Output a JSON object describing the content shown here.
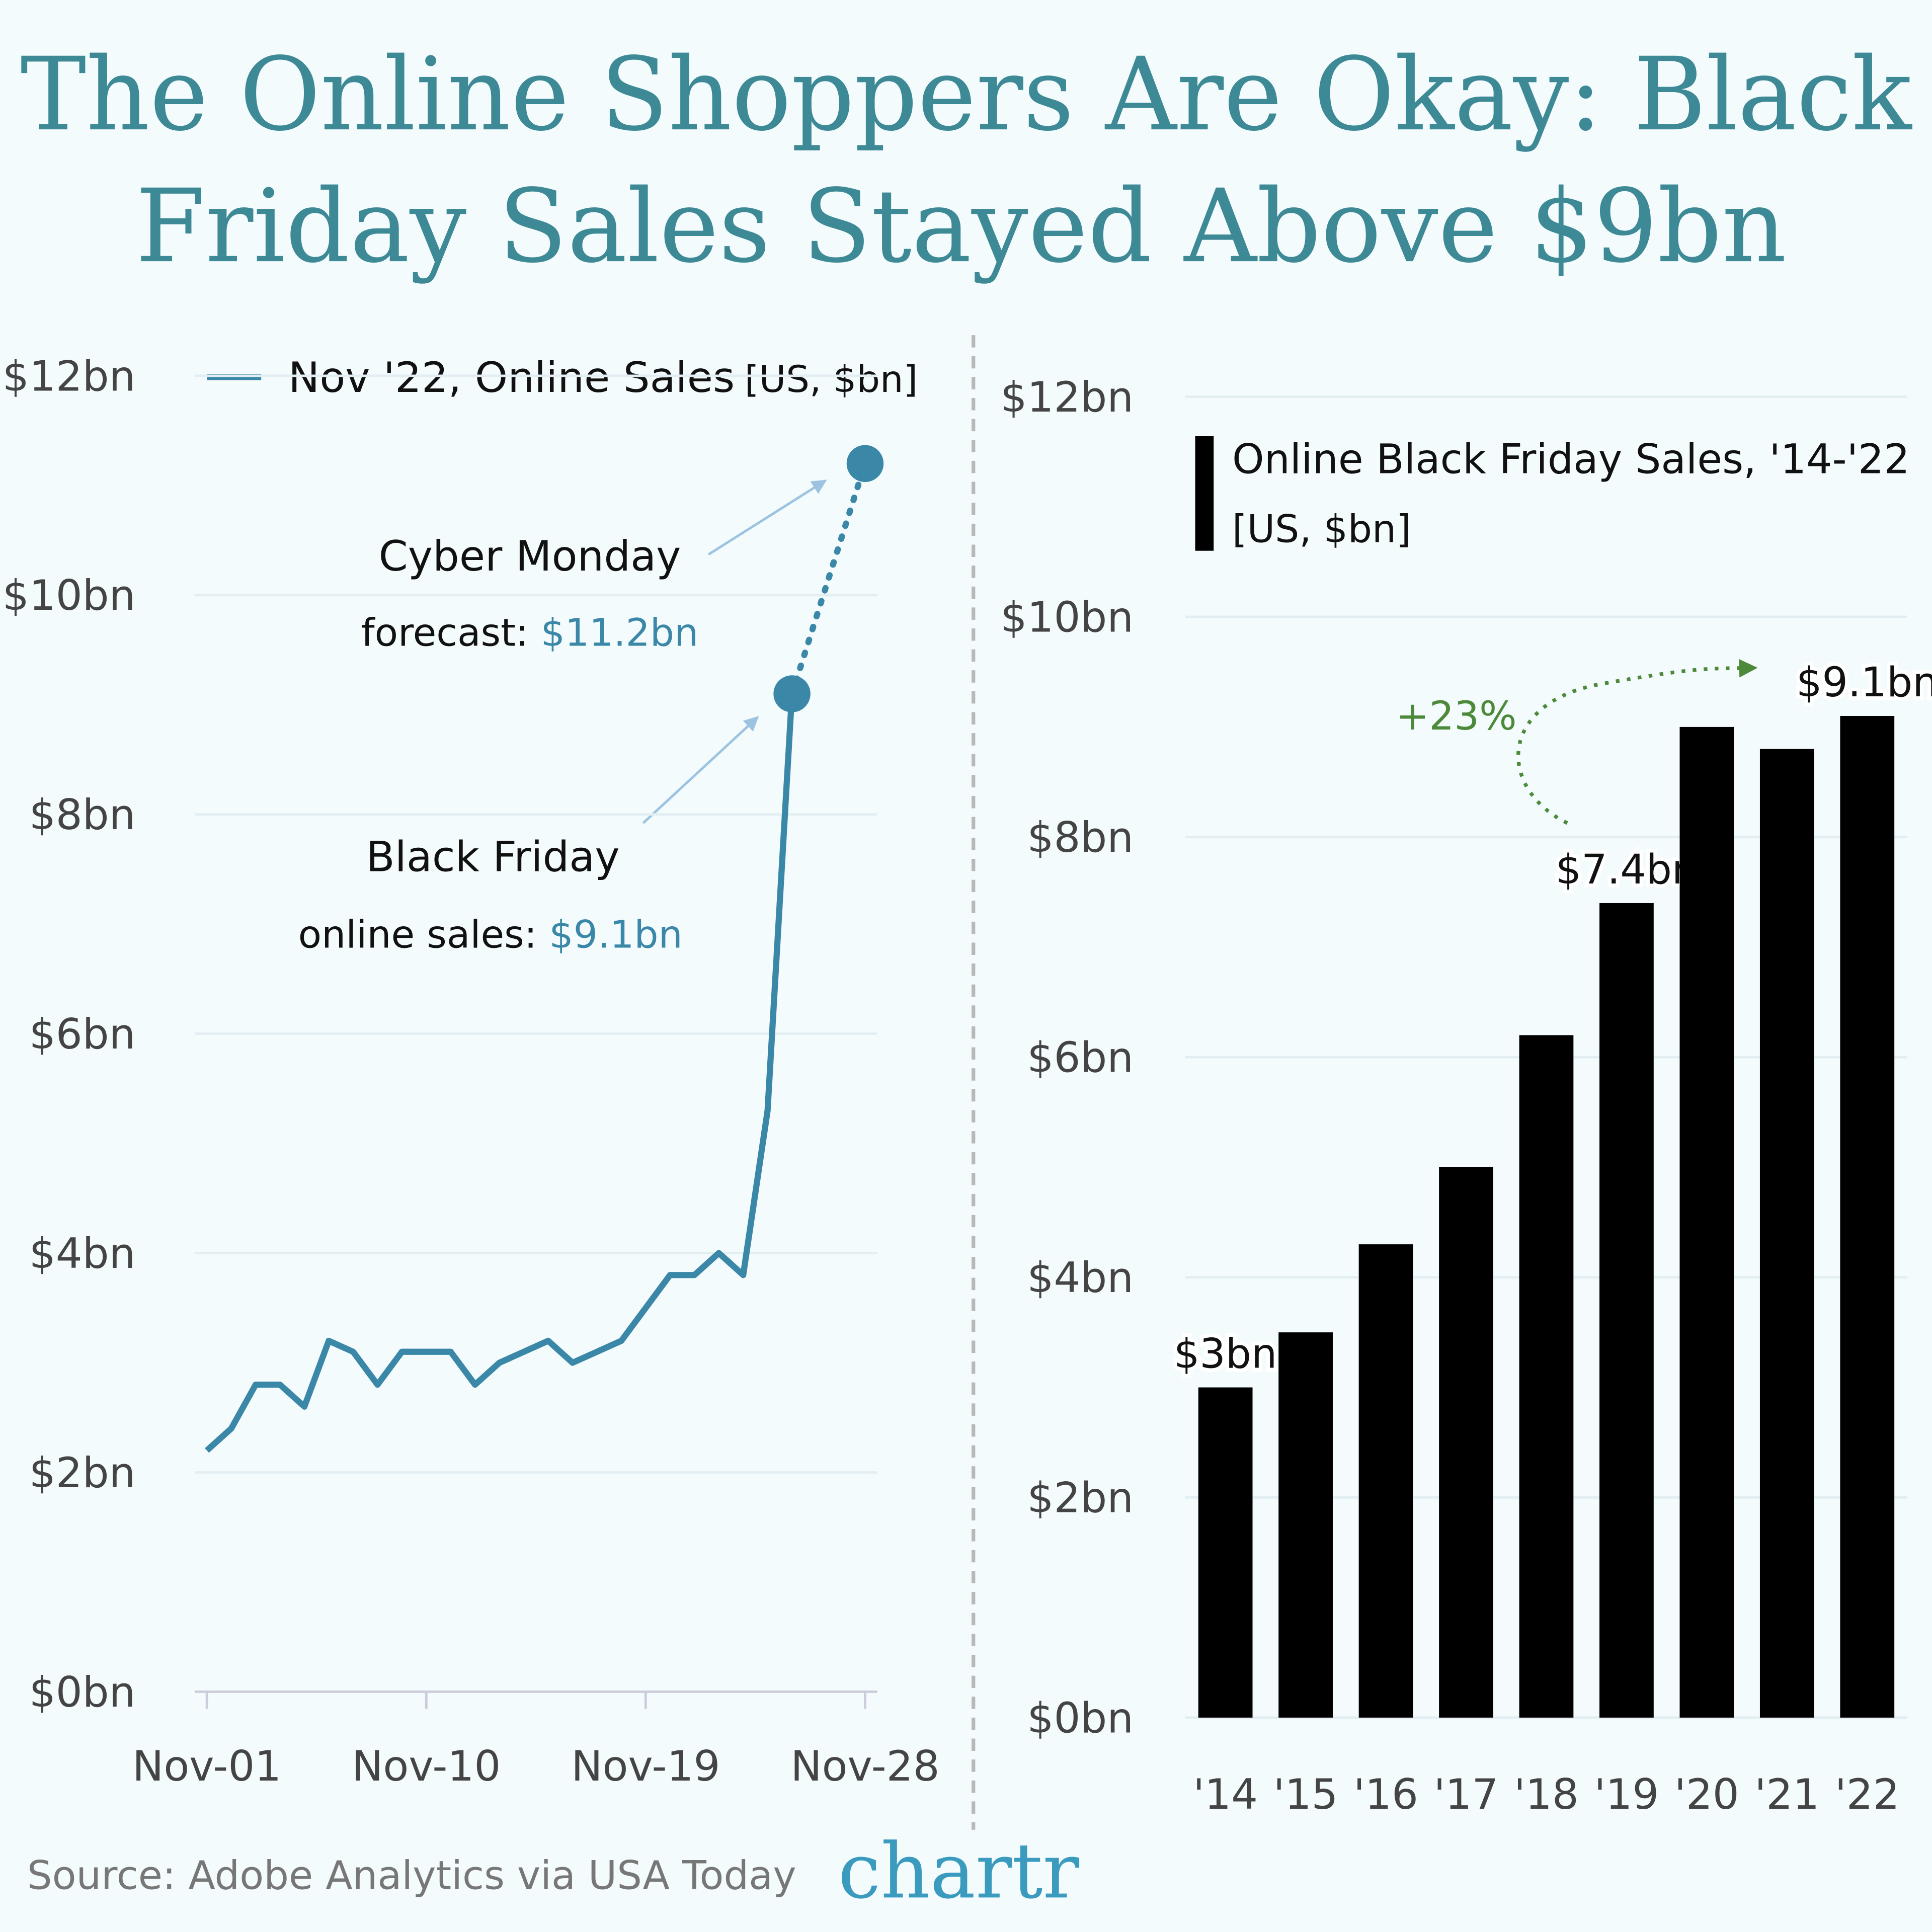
{
  "title": [
    "The Online Shoppers Are Okay: Black",
    "Friday Sales Stayed Above $9bn"
  ],
  "source": "Source: Adobe Analytics via USA Today",
  "logo": "chartr",
  "chart_data": [
    {
      "type": "line",
      "units": "[US, $bn]",
      "x": [
        1,
        2,
        3,
        4,
        5,
        6,
        7,
        8,
        9,
        10,
        11,
        12,
        13,
        14,
        15,
        16,
        17,
        18,
        19,
        20,
        21,
        22,
        23,
        24,
        25
      ],
      "series": [
        {
          "name": "Nov '22, Online Sales",
          "color": "#3a87a8",
          "values": [
            2.2,
            2.4,
            2.8,
            2.8,
            2.6,
            3.2,
            3.1,
            2.8,
            3.1,
            3.1,
            3.1,
            2.8,
            3.0,
            3.1,
            3.2,
            3.0,
            3.1,
            3.2,
            3.5,
            3.8,
            3.8,
            4.0,
            3.8,
            5.3,
            9.1
          ]
        }
      ],
      "forecast": {
        "x": [
          25,
          28
        ],
        "values": [
          9.1,
          11.2
        ]
      },
      "xlim": [
        0.5,
        28.5
      ],
      "xticks": [
        {
          "value": 1,
          "label": "Nov-01"
        },
        {
          "value": 10,
          "label": "Nov-10"
        },
        {
          "value": 19,
          "label": "Nov-19"
        },
        {
          "value": 28,
          "label": "Nov-28"
        }
      ],
      "ylim": [
        0,
        12
      ],
      "yticks": [
        {
          "value": 0,
          "label": "$0bn"
        },
        {
          "value": 2,
          "label": "$2bn"
        },
        {
          "value": 4,
          "label": "$4bn"
        },
        {
          "value": 6,
          "label": "$6bn"
        },
        {
          "value": 8,
          "label": "$8bn"
        },
        {
          "value": 10,
          "label": "$10bn"
        },
        {
          "value": 12,
          "label": "$12bn"
        }
      ],
      "grid": true,
      "annotations": [
        {
          "title": "Cyber Monday",
          "text": "forecast: ",
          "value": "$11.2bn"
        },
        {
          "title": "Black Friday",
          "text": "online sales: ",
          "value": "$9.1bn"
        }
      ]
    },
    {
      "type": "bar",
      "legend": [
        "Online Black Friday Sales, '14-'22",
        "[US, $bn]"
      ],
      "categories": [
        "'14",
        "'15",
        "'16",
        "'17",
        "'18",
        "'19",
        "'20",
        "'21",
        "'22"
      ],
      "values": [
        3.0,
        3.5,
        4.3,
        5.0,
        6.2,
        7.4,
        9.0,
        8.8,
        9.1
      ],
      "value_labels": [
        "$3bn",
        null,
        null,
        null,
        null,
        "$7.4bn",
        null,
        null,
        "$9.1bn"
      ],
      "color": "#000000",
      "ylim": [
        0,
        12
      ],
      "yticks": [
        {
          "value": 0,
          "label": "$0bn"
        },
        {
          "value": 2,
          "label": "$2bn"
        },
        {
          "value": 4,
          "label": "$4bn"
        },
        {
          "value": 6,
          "label": "$6bn"
        },
        {
          "value": 8,
          "label": "$8bn"
        },
        {
          "value": 10,
          "label": "$10bn"
        },
        {
          "value": 12,
          "label": "$12bn"
        }
      ],
      "grid": true,
      "annotation": "+23%"
    }
  ]
}
